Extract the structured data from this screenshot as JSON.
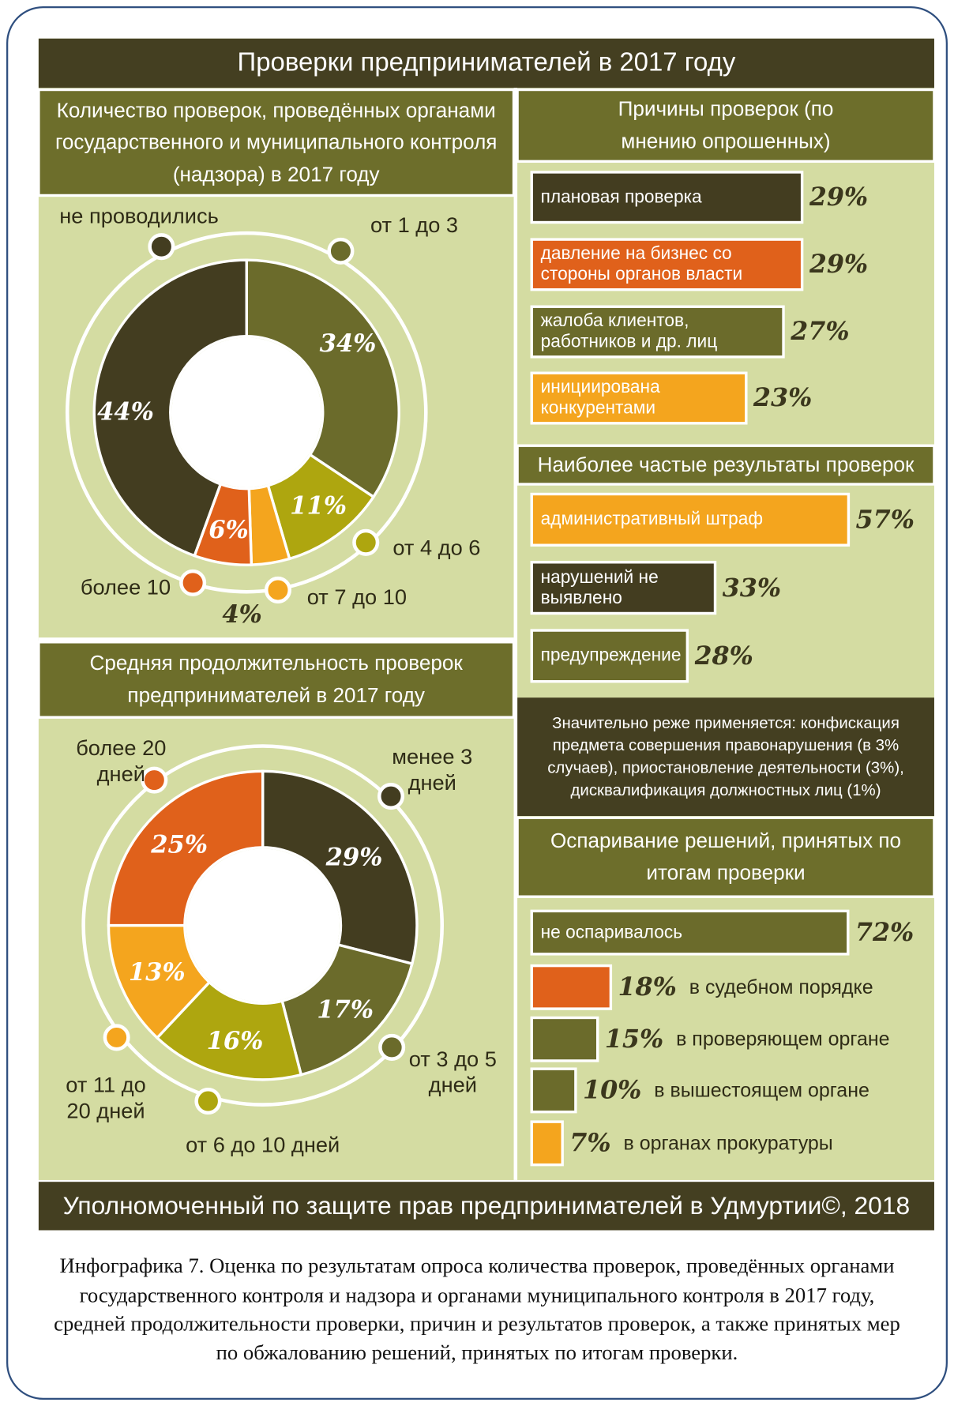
{
  "header": {
    "title": "Проверки предпринимателей в 2017 году"
  },
  "chart_data": [
    {
      "type": "pie",
      "title": "Количество проверок, проведённых органами государственного и муниципального контроля (надзора) в 2017 году",
      "categories": [
        "от 1 до 3",
        "от 4 до 6",
        "от 7 до 10",
        "более 10",
        "не проводились"
      ],
      "values": [
        34,
        11,
        4,
        6,
        44
      ],
      "value_labels": [
        "34%",
        "11%",
        "4%",
        "6%",
        "44%"
      ],
      "colors": [
        "#6b6b2b",
        "#aea60f",
        "#f4a51e",
        "#e0611b",
        "#433d20"
      ]
    },
    {
      "type": "bar",
      "title": "Причины проверок (по мнению опрошенных)",
      "categories": [
        "плановая проверка",
        "давление на бизнес со стороны органов власти",
        "жалоба клиентов, работников и др. лиц",
        "инициирована конкурентами"
      ],
      "values": [
        29,
        29,
        27,
        23
      ],
      "value_labels": [
        "29%",
        "29%",
        "27%",
        "23%"
      ],
      "colors": [
        "#433d20",
        "#e0611b",
        "#6b6b2b",
        "#f4a51e"
      ]
    },
    {
      "type": "bar",
      "title": "Наиболее частые результаты проверок",
      "categories": [
        "административный штраф",
        "нарушений не выявлено",
        "предупреждение"
      ],
      "values": [
        57,
        33,
        28
      ],
      "value_labels": [
        "57%",
        "33%",
        "28%"
      ],
      "colors": [
        "#f4a51e",
        "#433d20",
        "#6b6b2b"
      ]
    },
    {
      "type": "pie",
      "title": "Средняя продолжительность проверок предпринимателей в 2017 году",
      "categories": [
        "менее 3 дней",
        "от 3 до 5 дней",
        "от 6 до 10 дней",
        "от 11 до 20 дней",
        "более 20 дней"
      ],
      "values": [
        29,
        17,
        16,
        13,
        25
      ],
      "value_labels": [
        "29%",
        "17%",
        "16%",
        "13%",
        "25%"
      ],
      "colors": [
        "#433d20",
        "#6b6b2b",
        "#aea60f",
        "#f4a51e",
        "#e0611b"
      ]
    },
    {
      "type": "bar",
      "title": "Оспаривание решений, принятых по итогам проверки",
      "categories": [
        "не оспаривалось",
        "в судебном порядке",
        "в проверяющем органе",
        "в вышестоящем органе",
        "в органах прокуратуры"
      ],
      "values": [
        72,
        18,
        15,
        10,
        7
      ],
      "value_labels": [
        "72%",
        "18%",
        "15%",
        "10%",
        "7%"
      ],
      "colors": [
        "#6b6b2b",
        "#e0611b",
        "#6b6b2b",
        "#6b6b2b",
        "#f4a51e"
      ]
    }
  ],
  "note": "Значительно реже применяется: конфискация предмета совершения правонарушения (в 3% случаев), приостановление деятельности (3%), дисквалификация должностных лиц (1%)",
  "footer": "Уполномоченный по защите прав предпринимателей в Удмуртии©, 2018",
  "caption": "Инфографика 7. Оценка по результатам опроса количества проверок, проведённых органами государственного контроля и надзора и органами муниципального контроля в 2017 году, средней продолжительности проверки, причин и результатов проверок, а также принятых мер по обжалованию решений, принятых по итогам проверки."
}
